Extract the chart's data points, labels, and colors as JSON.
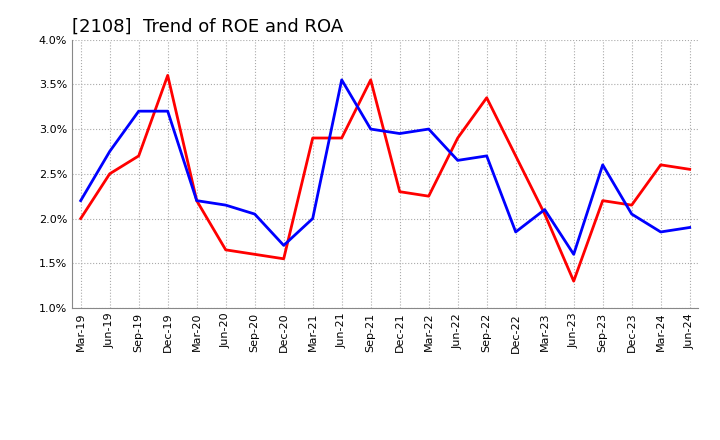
{
  "title": "[2108]  Trend of ROE and ROA",
  "x_labels": [
    "Mar-19",
    "Jun-19",
    "Sep-19",
    "Dec-19",
    "Mar-20",
    "Jun-20",
    "Sep-20",
    "Dec-20",
    "Mar-21",
    "Jun-21",
    "Sep-21",
    "Dec-21",
    "Mar-22",
    "Jun-22",
    "Sep-22",
    "Dec-22",
    "Mar-23",
    "Jun-23",
    "Sep-23",
    "Dec-23",
    "Mar-24",
    "Jun-24"
  ],
  "roe": [
    2.0,
    2.5,
    2.7,
    3.6,
    2.2,
    1.65,
    1.6,
    1.55,
    2.9,
    2.9,
    3.55,
    2.3,
    2.25,
    2.9,
    3.35,
    2.7,
    2.05,
    1.3,
    2.2,
    2.15,
    2.6,
    2.55
  ],
  "roa": [
    2.2,
    2.75,
    3.2,
    3.2,
    2.2,
    2.15,
    2.05,
    1.7,
    2.0,
    3.55,
    3.0,
    2.95,
    3.0,
    2.65,
    2.7,
    1.85,
    2.1,
    1.6,
    2.6,
    2.05,
    1.85,
    1.9
  ],
  "roe_color": "#ff0000",
  "roa_color": "#0000ff",
  "ylim": [
    1.0,
    4.0
  ],
  "yticks": [
    1.0,
    1.5,
    2.0,
    2.5,
    3.0,
    3.5,
    4.0
  ],
  "background_color": "#ffffff",
  "plot_bg_color": "#ffffff",
  "grid_color": "#aaaaaa",
  "line_width": 2.0,
  "title_fontsize": 13,
  "tick_fontsize": 8,
  "legend_fontsize": 10
}
